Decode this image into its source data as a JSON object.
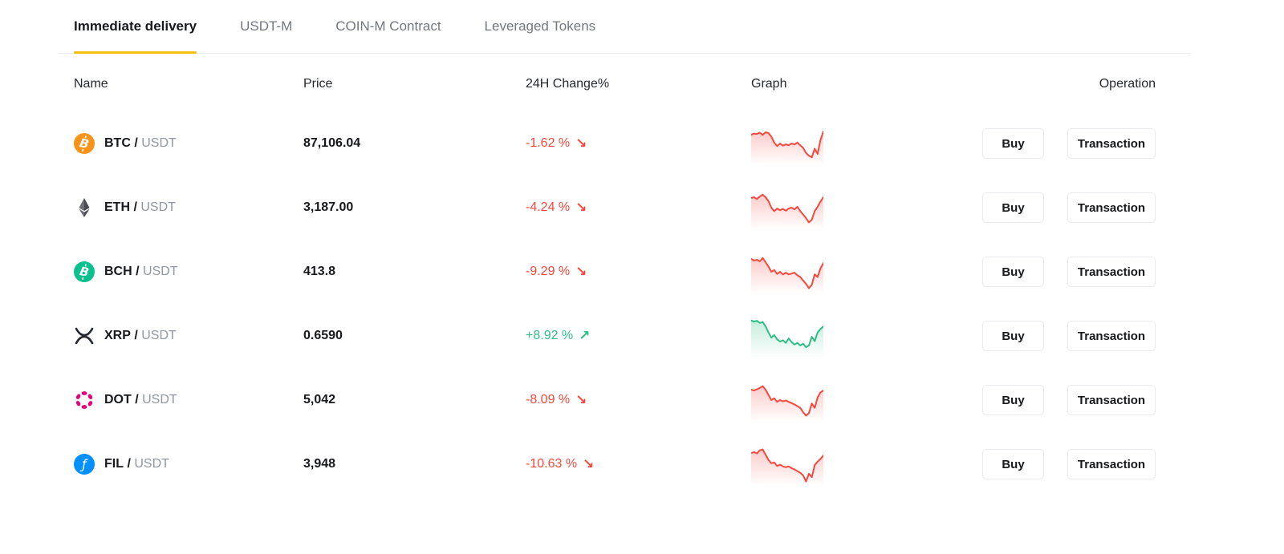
{
  "tabs": [
    {
      "label": "Immediate delivery",
      "active": true
    },
    {
      "label": "USDT-M",
      "active": false
    },
    {
      "label": "COIN-M Contract",
      "active": false
    },
    {
      "label": "Leveraged Tokens",
      "active": false
    }
  ],
  "table": {
    "headers": {
      "name": "Name",
      "price": "Price",
      "change": "24H Change%",
      "graph": "Graph",
      "operation": "Operation"
    },
    "buttons": {
      "buy": "Buy",
      "transaction": "Transaction"
    },
    "rows": [
      {
        "symbol": "BTC",
        "separator": "/",
        "quote": "USDT",
        "icon": "btc",
        "price": "87,106.04",
        "change": "-1.62 %",
        "direction": "down",
        "arrow": "↘",
        "spark": [
          30,
          27,
          28,
          25,
          30,
          24,
          26,
          34,
          48,
          56,
          50,
          55,
          52,
          54,
          50,
          52,
          48,
          54,
          60,
          72,
          78,
          82,
          62,
          74,
          42,
          22
        ]
      },
      {
        "symbol": "ETH",
        "separator": "/",
        "quote": "USDT",
        "icon": "eth",
        "price": "3,187.00",
        "change": "-4.24 %",
        "direction": "down",
        "arrow": "↘",
        "spark": [
          28,
          26,
          30,
          24,
          20,
          26,
          35,
          50,
          58,
          52,
          56,
          53,
          57,
          52,
          50,
          54,
          48,
          58,
          66,
          74,
          84,
          78,
          58,
          48,
          36,
          26
        ]
      },
      {
        "symbol": "BCH",
        "separator": "/",
        "quote": "USDT",
        "icon": "bch",
        "price": "413.8",
        "change": "-9.29 %",
        "direction": "down",
        "arrow": "↘",
        "spark": [
          20,
          24,
          22,
          26,
          18,
          28,
          38,
          50,
          46,
          55,
          50,
          56,
          52,
          56,
          54,
          52,
          58,
          62,
          70,
          78,
          88,
          80,
          56,
          62,
          42,
          30
        ]
      },
      {
        "symbol": "XRP",
        "separator": "/",
        "quote": "USDT",
        "icon": "xrp",
        "price": "0.6590",
        "change": "+8.92 %",
        "direction": "up",
        "arrow": "↗",
        "spark": [
          14,
          17,
          15,
          20,
          18,
          28,
          42,
          54,
          48,
          58,
          63,
          60,
          66,
          56,
          64,
          70,
          66,
          72,
          68,
          76,
          72,
          52,
          62,
          42,
          34,
          28
        ]
      },
      {
        "symbol": "DOT",
        "separator": "/",
        "quote": "USDT",
        "icon": "dot",
        "price": "5,042",
        "change": "-8.09 %",
        "direction": "down",
        "arrow": "↘",
        "spark": [
          26,
          28,
          25,
          22,
          18,
          26,
          38,
          50,
          46,
          54,
          50,
          53,
          51,
          54,
          57,
          60,
          64,
          68,
          78,
          86,
          80,
          58,
          68,
          44,
          32,
          28
        ]
      },
      {
        "symbol": "FIL",
        "separator": "/",
        "quote": "USDT",
        "icon": "fil",
        "price": "3,948",
        "change": "-10.63 %",
        "direction": "down",
        "arrow": "↘",
        "spark": [
          24,
          22,
          25,
          18,
          16,
          28,
          40,
          48,
          46,
          54,
          51,
          55,
          57,
          55,
          59,
          62,
          66,
          70,
          76,
          90,
          72,
          80,
          52,
          44,
          38,
          30
        ]
      }
    ]
  },
  "colors": {
    "up": "#2EBD85",
    "down": "#F5483E",
    "accent": "#F5C00B",
    "icons": {
      "btc": "#F7931A",
      "eth": "#3C3C3D",
      "bch": "#0AC18E",
      "xrp": "#23292F",
      "dot": "#E6007A",
      "fil": "#0090FF"
    }
  }
}
